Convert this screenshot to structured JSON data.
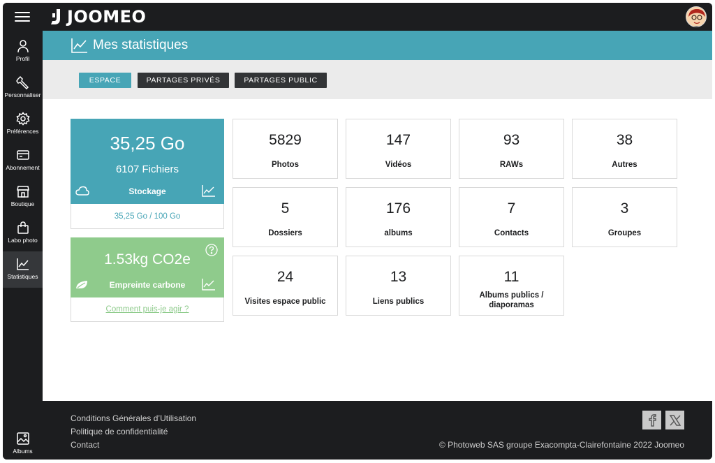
{
  "header": {
    "logo_text": "JOOMEO"
  },
  "sidebar": {
    "items": [
      {
        "label": "Profil",
        "icon": "user-icon"
      },
      {
        "label": "Personnaliser",
        "icon": "wrench-icon"
      },
      {
        "label": "Préférences",
        "icon": "gear-icon"
      },
      {
        "label": "Abonnement",
        "icon": "card-icon"
      },
      {
        "label": "Boutique",
        "icon": "shop-icon"
      },
      {
        "label": "Labo photo",
        "icon": "bag-icon"
      },
      {
        "label": "Statistiques",
        "icon": "chart-icon"
      }
    ],
    "bottom_item": {
      "label": "Albums",
      "icon": "albums-icon"
    }
  },
  "main": {
    "page_title": "Mes statistiques",
    "tabs": [
      {
        "label": "ESPACE",
        "active": true
      },
      {
        "label": "PARTAGES PRIVÉS",
        "active": false
      },
      {
        "label": "PARTAGES PUBLIC",
        "active": false
      }
    ],
    "storage": {
      "size": "35,25 Go",
      "files": "6107 Fichiers",
      "label": "Stockage",
      "quota": "35,25 Go / 100 Go",
      "color": "#47a5b6"
    },
    "carbon": {
      "value": "1.53kg CO2e",
      "label": "Empreinte carbone",
      "link": "Comment puis-je agir ?",
      "color": "#8fcb8c"
    },
    "stats": [
      {
        "value": "5829",
        "label": "Photos"
      },
      {
        "value": "147",
        "label": "Vidéos"
      },
      {
        "value": "93",
        "label": "RAWs"
      },
      {
        "value": "38",
        "label": "Autres"
      },
      {
        "value": "5",
        "label": "Dossiers"
      },
      {
        "value": "176",
        "label": "albums"
      },
      {
        "value": "7",
        "label": "Contacts"
      },
      {
        "value": "3",
        "label": "Groupes"
      },
      {
        "value": "24",
        "label": "Visites espace public"
      },
      {
        "value": "13",
        "label": "Liens publics"
      },
      {
        "value": "11",
        "label": "Albums publics / diaporamas"
      }
    ]
  },
  "footer": {
    "links": [
      "Conditions Générales d’Utilisation",
      "Politique de confidentialité",
      "Contact"
    ],
    "social": [
      "facebook-icon",
      "x-icon"
    ],
    "copyright": "© Photoweb SAS groupe Exacompta-Clairefontaine 2022 Joomeo"
  }
}
